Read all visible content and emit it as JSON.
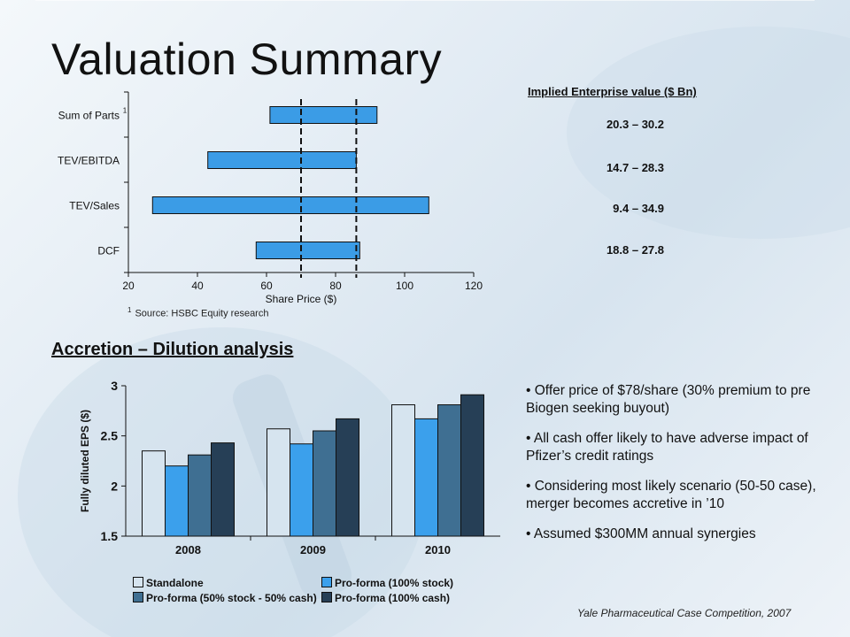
{
  "title": "Valuation Summary",
  "implied_ev": {
    "header": "Implied Enterprise value ($ Bn)",
    "ranges": [
      "20.3 – 30.2",
      "14.7 – 28.3",
      "9.4 – 34.9",
      "18.8 – 27.8"
    ]
  },
  "footnote": {
    "marker": "1",
    "text": "Source: HSBC Equity research"
  },
  "accretion": {
    "section_title": "Accretion – Dilution analysis"
  },
  "bullets": [
    "• Offer price of $78/share (30% premium to pre Biogen seeking buyout)",
    "• All cash offer likely to have adverse impact of Pfizer’s credit ratings",
    "• Considering most likely scenario (50-50 case), merger becomes accretive in ’10",
    "• Assumed $300MM annual synergies"
  ],
  "credit": "Yale Pharmaceutical Case Competition, 2007",
  "colors": {
    "range_bar": "#3b9ce6",
    "standalone": "#d6e4ef",
    "proforma_stock": "#3ba0ec",
    "proforma_5050": "#3f6f92",
    "proforma_cash": "#263f56"
  },
  "chart_data": [
    {
      "type": "bar",
      "orientation": "horizontal",
      "categories": [
        "Sum of Parts",
        "TEV/EBITDA",
        "TEV/Sales",
        "DCF"
      ],
      "category_marks": [
        "1",
        "",
        "",
        ""
      ],
      "ranges": [
        [
          61,
          92
        ],
        [
          43,
          86
        ],
        [
          27,
          107
        ],
        [
          57,
          87
        ]
      ],
      "xlabel": "Share Price ($)",
      "xticks": [
        20,
        40,
        60,
        80,
        100,
        120
      ],
      "xlim": [
        20,
        120
      ],
      "reference_lines": [
        70,
        86
      ]
    },
    {
      "type": "bar",
      "categories": [
        "2008",
        "2009",
        "2010"
      ],
      "ylabel": "Fully diluted EPS ($)",
      "yticks": [
        "1.5",
        "2",
        "2.5",
        "3"
      ],
      "ylim": [
        1.5,
        3
      ],
      "series": [
        {
          "name": "Standalone",
          "values": [
            2.35,
            2.57,
            2.81
          ]
        },
        {
          "name": "Pro-forma (100% stock)",
          "values": [
            2.2,
            2.42,
            2.67
          ]
        },
        {
          "name": "Pro-forma (50% stock - 50% cash)",
          "values": [
            2.31,
            2.55,
            2.81
          ]
        },
        {
          "name": "Pro-forma (100% cash)",
          "values": [
            2.43,
            2.67,
            2.91
          ]
        }
      ]
    }
  ]
}
